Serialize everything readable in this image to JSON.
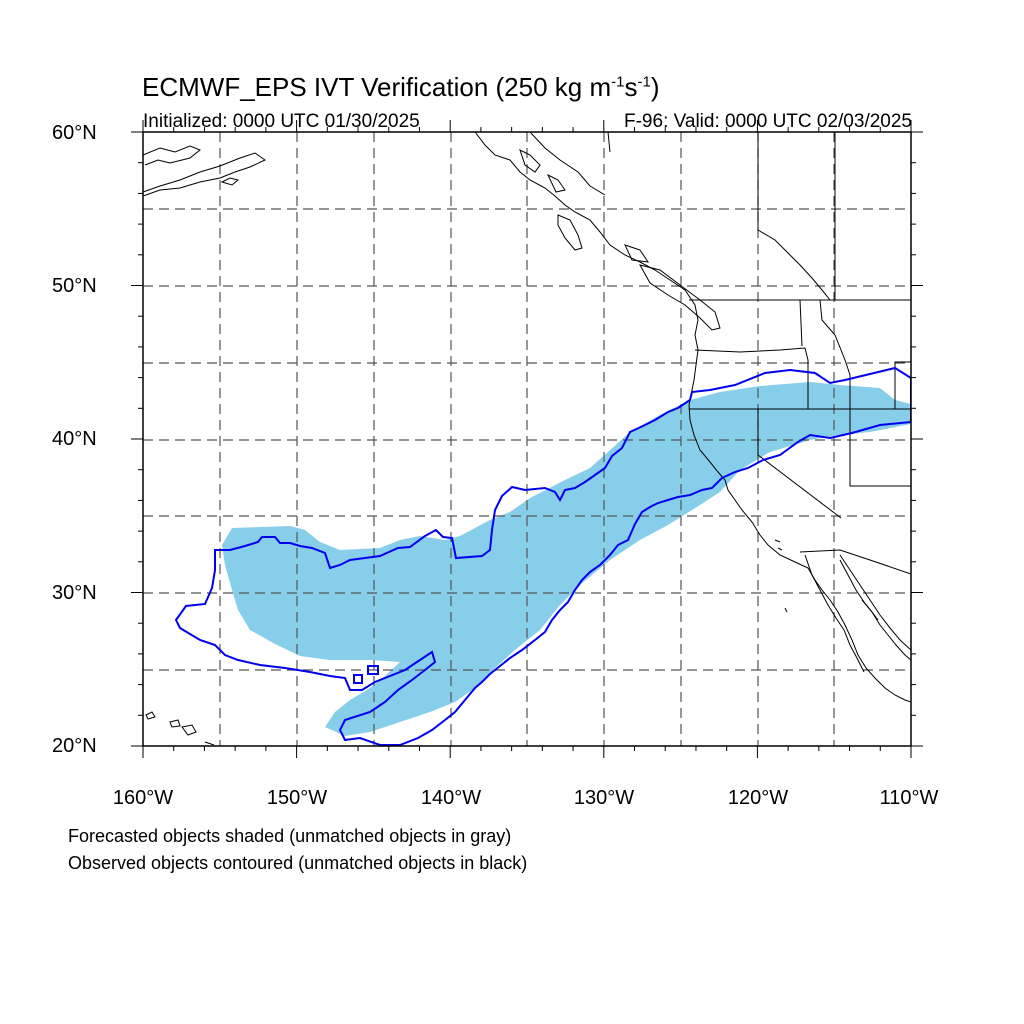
{
  "title": {
    "main": "ECMWF_EPS IVT Verification (250 kg m",
    "sup1": "-1",
    "mid": "s",
    "sup2": "-1",
    "end": ")"
  },
  "subtitle": {
    "left": "Initialized: 0000 UTC 01/30/2025",
    "right": "F-96: Valid: 0000 UTC 02/03/2025"
  },
  "axes": {
    "lat_labels": [
      "60°N",
      "50°N",
      "40°N",
      "30°N",
      "20°N"
    ],
    "lon_labels": [
      "160°W",
      "150°W",
      "140°W",
      "130°W",
      "120°W",
      "110°W"
    ],
    "lat_range": [
      20,
      60
    ],
    "lon_range": [
      -160,
      -110
    ]
  },
  "notes": {
    "forecast": "Forecasted objects shaded (unmatched objects in gray)",
    "observed": "Observed objects contoured (unmatched objects in black)"
  },
  "colors": {
    "forecast_fill": "#87ceeb",
    "observed_contour": "#0000ee",
    "grid": "#555555",
    "coastline": "#000000"
  }
}
